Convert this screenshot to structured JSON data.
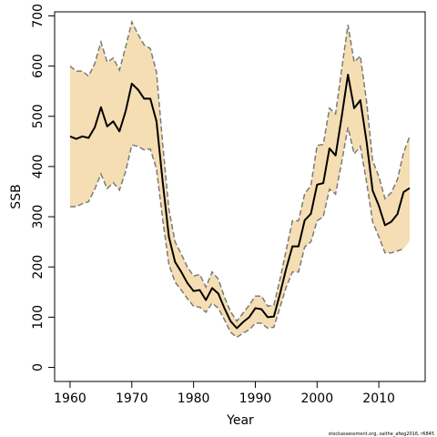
{
  "chart_data": {
    "type": "line",
    "title": "",
    "xlabel": "Year",
    "ylabel": "SSB",
    "xlim": [
      1957.5,
      2017.5
    ],
    "ylim": [
      -28,
      708
    ],
    "xticks": [
      1960,
      1970,
      1980,
      1990,
      2000,
      2010
    ],
    "yticks": [
      0,
      100,
      200,
      300,
      400,
      500,
      600,
      700
    ],
    "grid": false,
    "legend": "none",
    "colors": {
      "band": "#f5deb3",
      "bounds": "#7a7a7a",
      "estimate": "#000000"
    },
    "series": [
      {
        "x": [
          1960,
          1961,
          1962,
          1963,
          1964,
          1965,
          1966,
          1967,
          1968,
          1969,
          1970,
          1971,
          1972,
          1973,
          1974,
          1975,
          1976,
          1977,
          1978,
          1979,
          1980,
          1981,
          1982,
          1983,
          1984,
          1985,
          1986,
          1987,
          1988,
          1989,
          1990,
          1991,
          1992,
          1993,
          1994,
          1995,
          1996,
          1997,
          1998,
          1999,
          2000,
          2001,
          2002,
          2003,
          2004,
          2005,
          2006,
          2007,
          2008,
          2009,
          2010,
          2011,
          2012,
          2013,
          2014,
          2015
        ],
        "y": [
          460,
          455,
          460,
          457,
          478,
          518,
          480,
          490,
          470,
          510,
          565,
          553,
          535,
          535,
          490,
          370,
          260,
          210,
          190,
          168,
          152,
          154,
          134,
          158,
          147,
          118,
          92,
          78,
          90,
          100,
          118,
          116,
          100,
          101,
          147,
          197,
          241,
          241,
          293,
          306,
          364,
          367,
          436,
          422,
          500,
          583,
          516,
          532,
          450,
          352,
          322,
          283,
          290,
          305,
          349,
          357
        ],
        "lower": [
          320,
          320,
          326,
          330,
          355,
          385,
          356,
          368,
          353,
          390,
          443,
          440,
          433,
          435,
          395,
          295,
          205,
          170,
          154,
          137,
          122,
          120,
          110,
          128,
          118,
          95,
          70,
          60,
          68,
          75,
          88,
          88,
          78,
          80,
          120,
          160,
          190,
          190,
          240,
          250,
          292,
          300,
          355,
          345,
          410,
          478,
          425,
          440,
          370,
          290,
          260,
          228,
          228,
          232,
          236,
          null
        ],
        "upper": [
          600,
          590,
          590,
          580,
          605,
          648,
          608,
          616,
          592,
          638,
          688,
          663,
          642,
          635,
          588,
          445,
          315,
          250,
          226,
          200,
          182,
          185,
          160,
          190,
          176,
          140,
          111,
          92,
          108,
          124,
          142,
          142,
          122,
          124,
          176,
          234,
          292,
          292,
          346,
          362,
          442,
          444,
          516,
          505,
          595,
          682,
          608,
          620,
          530,
          412,
          380,
          336,
          348,
          374,
          428,
          460
        ]
      }
    ]
  },
  "credit": "stockassessment.org, saithe_afwg2016, r6845"
}
